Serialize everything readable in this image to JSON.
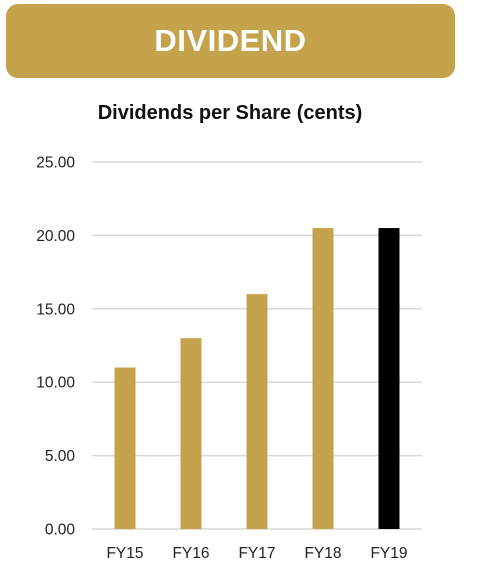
{
  "header": {
    "title": "DIVIDEND"
  },
  "colors": {
    "banner": "#c4a34c",
    "bar": "#c4a34c",
    "bar_highlight": "#000000",
    "gridline": "#d9d9d9"
  },
  "chart_data": {
    "type": "bar",
    "title": "Dividends per Share (cents)",
    "xlabel": "",
    "ylabel": "",
    "categories": [
      "FY15",
      "FY16",
      "FY17",
      "FY18",
      "FY19"
    ],
    "values": [
      11.0,
      13.0,
      16.0,
      20.5,
      20.5
    ],
    "highlight": "FY19",
    "ylim": [
      0,
      25
    ],
    "yticks": [
      "0.00",
      "5.00",
      "10.00",
      "15.00",
      "20.00",
      "25.00"
    ],
    "grid": true,
    "legend": "none"
  }
}
